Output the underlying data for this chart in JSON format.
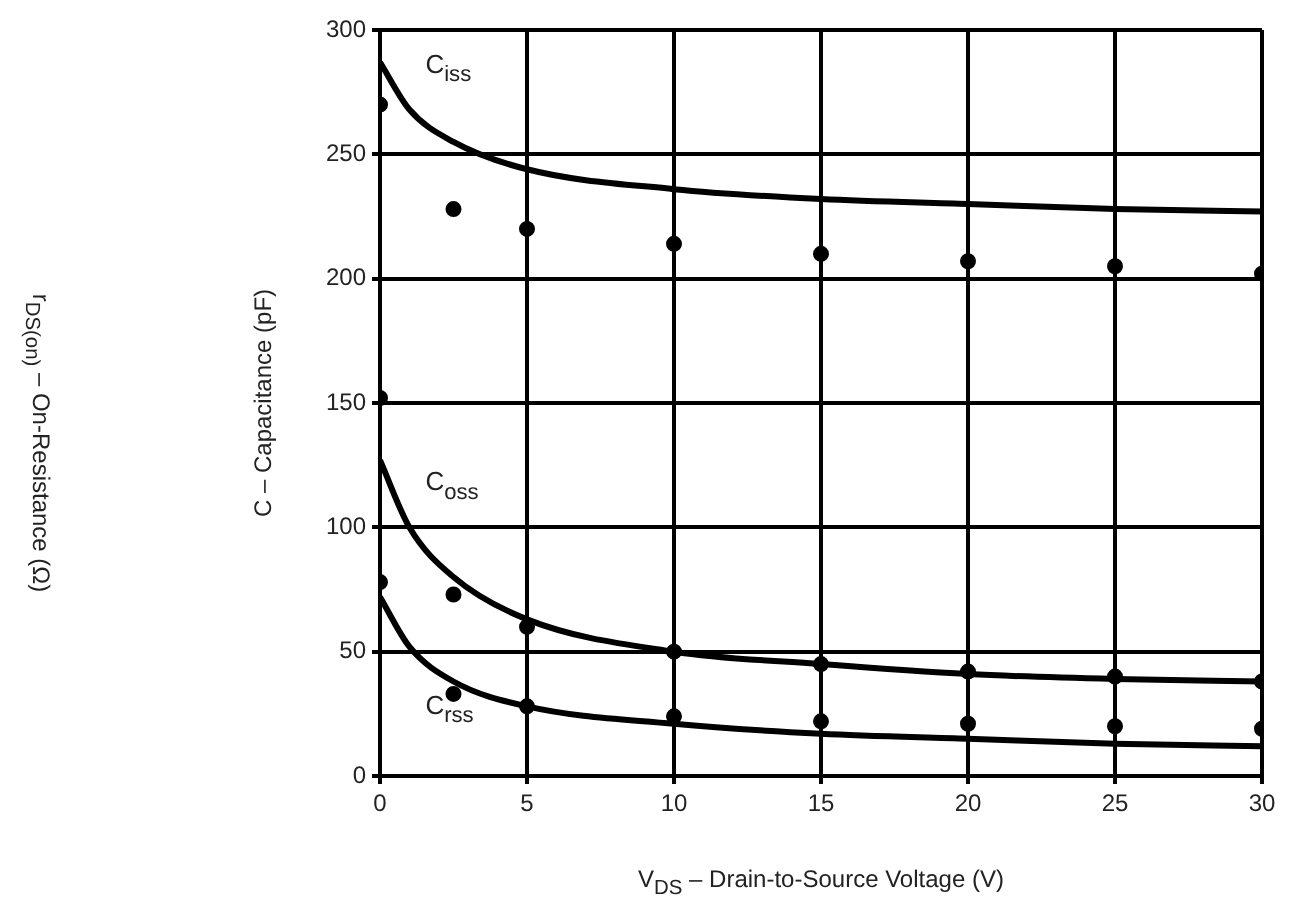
{
  "chart_data": {
    "type": "line",
    "xlabel": "V$_{DS}$ – Drain-to-Source Voltage (V)",
    "ylabel": "C – Capacitance (pF)",
    "annotations": [
      "r$_{DS(on)}$ – On-Resistance (Ω)"
    ],
    "xlim": [
      0,
      30
    ],
    "xticks": [
      0,
      5,
      10,
      15,
      20,
      25,
      30
    ],
    "ylim": [
      0,
      300
    ],
    "yticks": [
      0,
      50,
      100,
      150,
      200,
      250,
      300
    ],
    "grid": true,
    "legend": false,
    "marker": "none",
    "line_style": "solid",
    "series": [
      {
        "name": "C$_{iss}$",
        "color": "#000000",
        "x": [
          0,
          1,
          2.5,
          5,
          10,
          15,
          20,
          25,
          30
        ],
        "values": [
          287,
          268,
          255,
          244,
          236,
          232,
          230,
          228,
          227
        ]
      },
      {
        "name": "C$_{oss}$",
        "color": "#000000",
        "x": [
          0,
          1,
          2.5,
          5,
          10,
          15,
          20,
          25,
          30
        ],
        "values": [
          127,
          100,
          80,
          63,
          50,
          45,
          41,
          39,
          38
        ]
      },
      {
        "name": "C$_{rss}$",
        "color": "#000000",
        "x": [
          0,
          1,
          2.5,
          5,
          10,
          15,
          20,
          25,
          30
        ],
        "values": [
          72,
          52,
          38,
          28,
          21,
          17,
          15,
          13,
          12
        ]
      },
      {
        "type": "scatter",
        "marker": "circle",
        "color": "#000000",
        "x": [
          0,
          2.5,
          5,
          10,
          15,
          20,
          25,
          30,
          0,
          0,
          2.5,
          5,
          10,
          15,
          20,
          25,
          30,
          2.5,
          5,
          10,
          15,
          20,
          25,
          30
        ],
        "values": [
          270,
          228,
          220,
          214,
          210,
          207,
          205,
          202,
          152,
          78,
          73,
          60,
          50,
          45,
          42,
          40,
          38,
          33,
          28,
          24,
          22,
          21,
          20,
          19
        ]
      }
    ]
  }
}
